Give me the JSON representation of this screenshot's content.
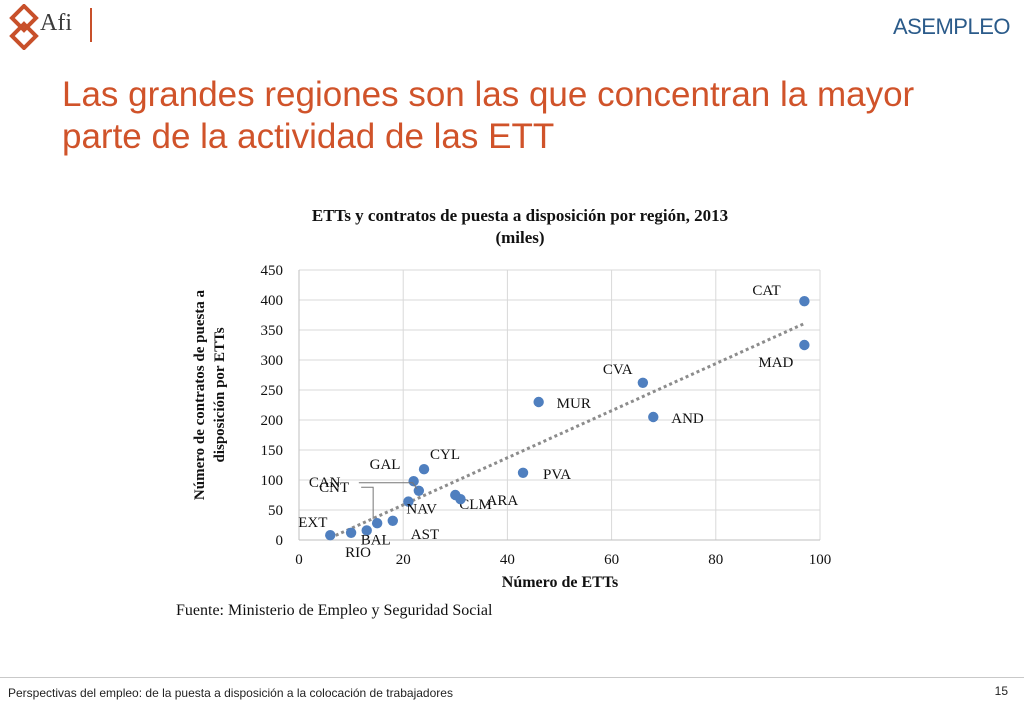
{
  "header": {
    "logo_left_text": "Afi",
    "logo_right_text": "ASEMPLEO"
  },
  "slide": {
    "title": "Las grandes regiones son las que concentran la mayor parte de la actividad de las ETT"
  },
  "chart_data": {
    "type": "scatter",
    "title": "ETTs y contratos de puesta a disposición por región, 2013 (miles)",
    "xlabel": "Número de ETTs",
    "ylabel": "Número de contratos de puesta a disposición por ETTs",
    "xlim": [
      0,
      100
    ],
    "ylim": [
      0,
      450
    ],
    "xticks": [
      0,
      20,
      40,
      60,
      80,
      100
    ],
    "yticks": [
      0,
      50,
      100,
      150,
      200,
      250,
      300,
      350,
      400,
      450
    ],
    "grid": true,
    "trendline": "linear",
    "colors": {
      "points": "#4f7fbf",
      "trend": "#8c8c8c",
      "title": "#d0532a"
    },
    "points": [
      {
        "label": "CAT",
        "x": 97,
        "y": 398
      },
      {
        "label": "MAD",
        "x": 97,
        "y": 325
      },
      {
        "label": "CVA",
        "x": 66,
        "y": 262
      },
      {
        "label": "AND",
        "x": 68,
        "y": 205
      },
      {
        "label": "MUR",
        "x": 46,
        "y": 230
      },
      {
        "label": "PVA",
        "x": 43,
        "y": 112
      },
      {
        "label": "CYL",
        "x": 24,
        "y": 118
      },
      {
        "label": "GAL",
        "x": 22,
        "y": 98
      },
      {
        "label": "CAN",
        "x": 23,
        "y": 82
      },
      {
        "label": "CLM",
        "x": 30,
        "y": 75
      },
      {
        "label": "ARA",
        "x": 31,
        "y": 68
      },
      {
        "label": "NAV",
        "x": 21,
        "y": 64
      },
      {
        "label": "CNT",
        "x": 15,
        "y": 28
      },
      {
        "label": "AST",
        "x": 18,
        "y": 32
      },
      {
        "label": "BAL",
        "x": 13,
        "y": 16
      },
      {
        "label": "RIO",
        "x": 10,
        "y": 12
      },
      {
        "label": "EXT",
        "x": 6,
        "y": 8
      }
    ],
    "source": "Fuente: Ministerio de Empleo  y Seguridad Social"
  },
  "footer": {
    "text": "Perspectivas del empleo: de la puesta a disposición a la colocación de trabajadores",
    "page": "15"
  }
}
